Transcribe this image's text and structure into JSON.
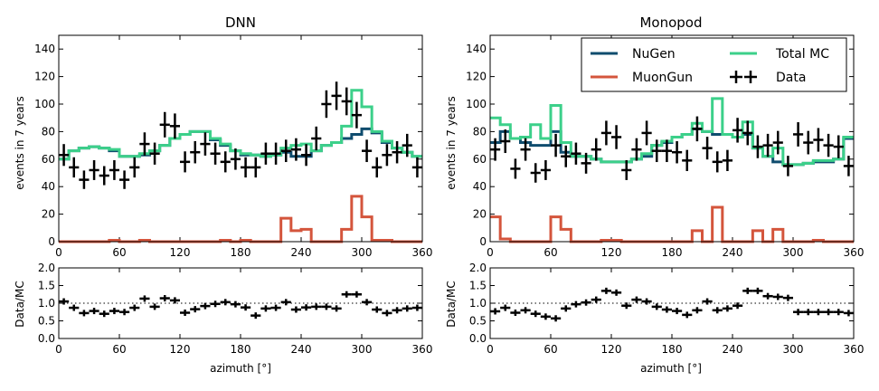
{
  "chart_data": [
    {
      "type": "step-histogram",
      "title": "DNN",
      "xlabel": "azimuth [°]",
      "ylabel": "events in 7 years",
      "xlim": [
        0,
        360
      ],
      "ylim": [
        0,
        150
      ],
      "xticks": [
        0,
        60,
        120,
        180,
        240,
        300,
        360
      ],
      "yticks": [
        0,
        20,
        40,
        60,
        80,
        100,
        120,
        140
      ],
      "bin_edges": [
        0,
        10,
        20,
        30,
        40,
        50,
        60,
        70,
        80,
        90,
        100,
        110,
        120,
        130,
        140,
        150,
        160,
        170,
        180,
        190,
        200,
        210,
        220,
        230,
        240,
        250,
        260,
        270,
        280,
        290,
        300,
        310,
        320,
        330,
        340,
        350,
        360
      ],
      "bin_centers": [
        5,
        15,
        25,
        35,
        45,
        55,
        65,
        75,
        85,
        95,
        105,
        115,
        125,
        135,
        145,
        155,
        165,
        175,
        185,
        195,
        205,
        215,
        225,
        235,
        245,
        255,
        265,
        275,
        285,
        295,
        305,
        315,
        325,
        335,
        345,
        355
      ],
      "series": [
        {
          "name": "NuGen",
          "color": "#0f4c6e",
          "values": [
            60,
            66,
            68,
            69,
            68,
            66,
            62,
            62,
            63,
            66,
            70,
            75,
            78,
            80,
            80,
            74,
            70,
            66,
            63,
            63,
            62,
            63,
            65,
            62,
            62,
            66,
            70,
            72,
            75,
            78,
            82,
            79,
            72,
            68,
            65,
            62
          ]
        },
        {
          "name": "MuonGun",
          "color": "#d4553c",
          "values": [
            0,
            0,
            0,
            0,
            0,
            1,
            0,
            0,
            1,
            0,
            0,
            0,
            0,
            0,
            0,
            0,
            1,
            0,
            1,
            0,
            0,
            0,
            17,
            8,
            9,
            0,
            0,
            0,
            9,
            33,
            18,
            1,
            1,
            0,
            0,
            0
          ]
        },
        {
          "name": "Total MC",
          "color": "#3cd08a",
          "values": [
            60,
            66,
            68,
            69,
            68,
            67,
            62,
            62,
            64,
            66,
            70,
            75,
            78,
            80,
            80,
            75,
            71,
            66,
            64,
            63,
            62,
            63,
            68,
            70,
            71,
            66,
            70,
            72,
            84,
            110,
            98,
            80,
            73,
            68,
            65,
            62
          ]
        },
        {
          "name": "Data",
          "color": "#000000",
          "values": [
            63,
            54,
            45,
            52,
            48,
            52,
            45,
            54,
            71,
            64,
            85,
            84,
            58,
            65,
            71,
            64,
            58,
            60,
            54,
            54,
            64,
            64,
            66,
            67,
            63,
            75,
            100,
            106,
            102,
            92,
            66,
            54,
            63,
            65,
            70,
            54
          ]
        }
      ]
    },
    {
      "type": "step-histogram",
      "title": "Monopod",
      "xlabel": "azimuth [°]",
      "ylabel": "events in 7 years",
      "xlim": [
        0,
        360
      ],
      "ylim": [
        0,
        150
      ],
      "xticks": [
        0,
        60,
        120,
        180,
        240,
        300,
        360
      ],
      "yticks": [
        0,
        20,
        40,
        60,
        80,
        100,
        120,
        140
      ],
      "legend": {
        "position": "top-right",
        "entries": [
          "NuGen",
          "MuonGun",
          "Total MC",
          "Data"
        ]
      },
      "bin_edges": [
        0,
        10,
        20,
        30,
        40,
        50,
        60,
        70,
        80,
        90,
        100,
        110,
        120,
        130,
        140,
        150,
        160,
        170,
        180,
        190,
        200,
        210,
        220,
        230,
        240,
        250,
        260,
        270,
        280,
        290,
        300,
        310,
        320,
        330,
        340,
        350,
        360
      ],
      "bin_centers": [
        5,
        15,
        25,
        35,
        45,
        55,
        65,
        75,
        85,
        95,
        105,
        115,
        125,
        135,
        145,
        155,
        165,
        175,
        185,
        195,
        205,
        215,
        225,
        235,
        245,
        255,
        265,
        275,
        285,
        295,
        305,
        315,
        325,
        335,
        345,
        355
      ],
      "series": [
        {
          "name": "NuGen",
          "color": "#0f4c6e",
          "values": [
            72,
            80,
            75,
            72,
            70,
            70,
            80,
            65,
            62,
            62,
            60,
            58,
            58,
            58,
            60,
            62,
            70,
            72,
            76,
            78,
            82,
            80,
            78,
            78,
            76,
            78,
            68,
            62,
            58,
            56,
            56,
            57,
            58,
            58,
            60,
            75
          ]
        },
        {
          "name": "MuonGun",
          "color": "#d4553c",
          "values": [
            18,
            2,
            0,
            0,
            0,
            0,
            18,
            9,
            0,
            0,
            0,
            1,
            1,
            0,
            0,
            0,
            0,
            0,
            0,
            0,
            8,
            0,
            25,
            0,
            0,
            0,
            8,
            0,
            9,
            0,
            0,
            0,
            1,
            0,
            0,
            0
          ]
        },
        {
          "name": "Total MC",
          "color": "#3cd08a",
          "values": [
            90,
            85,
            75,
            76,
            85,
            75,
            99,
            72,
            62,
            62,
            60,
            58,
            58,
            58,
            60,
            64,
            70,
            73,
            76,
            78,
            86,
            80,
            104,
            78,
            76,
            87,
            68,
            62,
            68,
            56,
            56,
            57,
            59,
            59,
            60,
            76
          ]
        },
        {
          "name": "Data",
          "color": "#000000",
          "values": [
            67,
            73,
            53,
            67,
            50,
            52,
            70,
            62,
            64,
            57,
            67,
            79,
            76,
            52,
            67,
            79,
            66,
            66,
            65,
            59,
            82,
            68,
            58,
            59,
            81,
            79,
            69,
            70,
            72,
            55,
            78,
            72,
            74,
            70,
            69,
            55
          ]
        }
      ]
    },
    {
      "type": "scatter",
      "title": "",
      "xlabel": "azimuth [°]",
      "ylabel": "Data/MC",
      "xlim": [
        0,
        360
      ],
      "ylim": [
        0.0,
        2.0
      ],
      "xticks": [
        0,
        60,
        120,
        180,
        240,
        300,
        360
      ],
      "yticks": [
        "0.0",
        "0.5",
        "1.0",
        "1.5",
        "2.0"
      ],
      "reference_line": 1.0,
      "x": [
        5,
        15,
        25,
        35,
        45,
        55,
        65,
        75,
        85,
        95,
        105,
        115,
        125,
        135,
        145,
        155,
        165,
        175,
        185,
        195,
        205,
        215,
        225,
        235,
        245,
        255,
        265,
        275,
        285,
        295,
        305,
        315,
        325,
        335,
        345,
        355
      ],
      "values": [
        1.05,
        0.87,
        0.72,
        0.78,
        0.7,
        0.78,
        0.75,
        0.87,
        1.13,
        0.9,
        1.14,
        1.08,
        0.73,
        0.83,
        0.92,
        0.98,
        1.03,
        0.97,
        0.88,
        0.65,
        0.85,
        0.87,
        1.03,
        0.82,
        0.88,
        0.9,
        0.9,
        0.85,
        1.25,
        1.25,
        1.03,
        0.82,
        0.72,
        0.8,
        0.85,
        0.87
      ]
    },
    {
      "type": "scatter",
      "title": "",
      "xlabel": "azimuth [°]",
      "ylabel": "Data/MC",
      "xlim": [
        0,
        360
      ],
      "ylim": [
        0.0,
        2.0
      ],
      "xticks": [
        0,
        60,
        120,
        180,
        240,
        300,
        360
      ],
      "yticks": [
        "0.0",
        "0.5",
        "1.0",
        "1.5",
        "2.0"
      ],
      "reference_line": 1.0,
      "x": [
        5,
        15,
        25,
        35,
        45,
        55,
        65,
        75,
        85,
        95,
        105,
        115,
        125,
        135,
        145,
        155,
        165,
        175,
        185,
        195,
        205,
        215,
        225,
        235,
        245,
        255,
        265,
        275,
        285,
        295,
        305,
        315,
        325,
        335,
        345,
        355
      ],
      "values": [
        0.77,
        0.87,
        0.73,
        0.8,
        0.7,
        0.62,
        0.57,
        0.85,
        0.97,
        1.02,
        1.1,
        1.35,
        1.3,
        0.93,
        1.1,
        1.05,
        0.9,
        0.82,
        0.78,
        0.67,
        0.8,
        1.05,
        0.8,
        0.85,
        0.93,
        1.35,
        1.35,
        1.2,
        1.18,
        1.15,
        0.75,
        0.75,
        0.75,
        0.75,
        0.75,
        0.72
      ]
    }
  ]
}
